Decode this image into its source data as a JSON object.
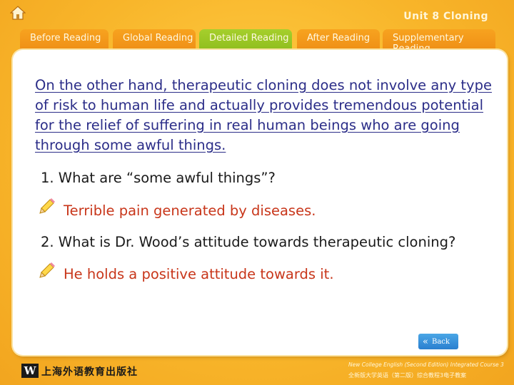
{
  "header": {
    "home_icon": "home-icon",
    "unit_title": "Unit 8 Cloning"
  },
  "tabs": [
    {
      "label": "Before Reading",
      "active": false
    },
    {
      "label": "Global Reading",
      "active": false
    },
    {
      "label": "Detailed Reading",
      "active": true
    },
    {
      "label": "After Reading",
      "active": false
    },
    {
      "label": "Supplementary Reading",
      "active": false
    }
  ],
  "content": {
    "quote": "On the other hand, therapeutic cloning does not involve any type of risk to human life and actually provides tremendous potential for the relief of suffering in real human beings who are going through some awful things.",
    "question1": "1. What are “some awful things”?",
    "answer1": "Terrible pain generated by diseases.",
    "question2": "2. What is Dr. Wood’s attitude towards therapeutic cloning?",
    "answer2": "He holds a positive attitude towards it.",
    "answer_icon": "pencil-icon"
  },
  "controls": {
    "back_label": "Back",
    "back_icon": "double-chevron-left-icon"
  },
  "footer": {
    "logo_letter": "W",
    "publisher": "上海外语教育出版社",
    "course_en": "New College English (Second Edition) Integrated Course 3",
    "course_cn": "全新版大学英语（第二版）综合教程3电子教案"
  },
  "colors": {
    "background": "#f8b52a",
    "tab": "#f29a1b",
    "tab_active": "#9cc826",
    "quote_text": "#2b2d88",
    "answer_text": "#c8361a",
    "back_button": "#3a93dc"
  }
}
